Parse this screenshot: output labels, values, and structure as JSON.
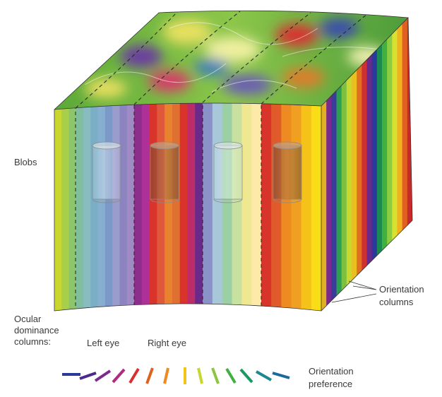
{
  "labels": {
    "blobs": "Blobs",
    "orientation_columns": [
      "Orientation",
      "columns"
    ],
    "ocular_dominance": [
      "Ocular",
      "dominance",
      "columns:"
    ],
    "left_eye": "Left eye",
    "right_eye": "Right eye",
    "orientation_preference": [
      "Orientation",
      "preference"
    ]
  }
}
